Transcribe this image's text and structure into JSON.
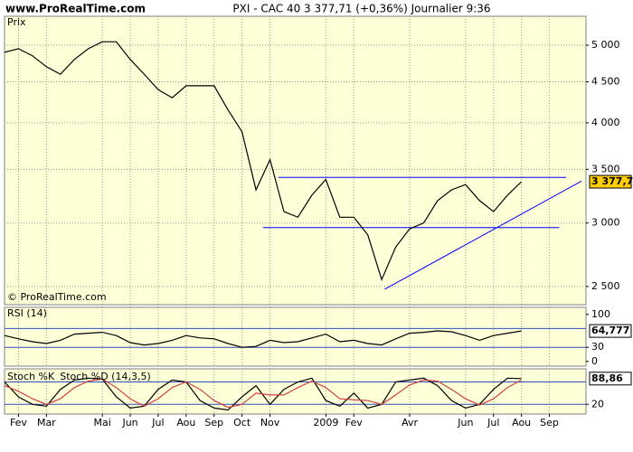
{
  "chart_data": [
    {
      "type": "line",
      "site": "www.ProRealTime.com",
      "title": "PXI - CAC 40   3 377,71 (+0,36%)   Journalier  9:36",
      "label": "Prix",
      "watermark": "© ProRealTime.com",
      "categories": [
        null,
        "Fev",
        null,
        "Mar",
        null,
        null,
        null,
        "Mai",
        null,
        "Jun",
        null,
        "Jul",
        null,
        "Aou",
        null,
        "Sep",
        null,
        "Oct",
        null,
        "Nov",
        null,
        null,
        null,
        "2009",
        null,
        "Fev",
        null,
        null,
        null,
        "Avr",
        null,
        null,
        null,
        "Jun",
        null,
        "Jul",
        null,
        "Aou",
        null,
        "Sep",
        null
      ],
      "values": [
        4900,
        4950,
        4850,
        4700,
        4600,
        4800,
        4950,
        5050,
        5050,
        4800,
        4600,
        4400,
        4300,
        4450,
        4450,
        4450,
        4150,
        3900,
        3300,
        3600,
        3100,
        3050,
        3250,
        3400,
        3050,
        3050,
        2900,
        2550,
        2800,
        2950,
        3000,
        3200,
        3300,
        3350,
        3200,
        3100,
        3250,
        3377.71,
        null,
        null,
        null
      ],
      "value_labels": [
        null,
        null,
        null,
        null,
        null,
        null,
        null,
        null,
        null,
        null,
        null,
        null,
        null,
        null,
        null,
        null,
        null,
        null,
        null,
        null,
        null,
        null,
        null,
        null,
        null,
        null,
        null,
        null,
        null,
        null,
        null,
        null,
        null,
        null,
        null,
        null,
        null,
        "3 377,71",
        null,
        null,
        null
      ],
      "color": "#000000",
      "log_scale": true,
      "ylim": [
        2373,
        5433
      ],
      "yticks": [
        {
          "value": 2500,
          "label": "2 500"
        },
        {
          "value": 3000,
          "label": "3 000"
        },
        {
          "value": 3500,
          "label": "3 500"
        },
        {
          "value": 4000,
          "label": "4 000"
        },
        {
          "value": 4500,
          "label": "4 500"
        },
        {
          "value": 5000,
          "label": "5 000"
        }
      ],
      "grid": true,
      "trendline_color": "#0000ff",
      "trendlines": [
        {
          "x": [
            19.6,
            40.2
          ],
          "y": [
            3420,
            3420
          ]
        },
        {
          "x": [
            18.5,
            39.7
          ],
          "y": [
            2961,
            2961
          ]
        },
        {
          "x": [
            27.2,
            41.3
          ],
          "y": [
            2480,
            3384
          ]
        }
      ]
    },
    {
      "type": "line",
      "label": "RSI (14)",
      "values": [
        55,
        48,
        42,
        38,
        45,
        58,
        60,
        62,
        55,
        40,
        35,
        38,
        45,
        55,
        50,
        48,
        38,
        30,
        32,
        45,
        40,
        42,
        50,
        58,
        42,
        45,
        38,
        35,
        48,
        60,
        62,
        65,
        63,
        55,
        45,
        55,
        60,
        64.777,
        null,
        null,
        null
      ],
      "value_labels": [
        null,
        null,
        null,
        null,
        null,
        null,
        null,
        null,
        null,
        null,
        null,
        null,
        null,
        null,
        null,
        null,
        null,
        null,
        null,
        null,
        null,
        null,
        null,
        null,
        null,
        null,
        null,
        null,
        null,
        null,
        null,
        null,
        null,
        null,
        null,
        null,
        null,
        "64,777",
        null,
        null,
        null
      ],
      "color": "#000000",
      "ylim": [
        -10,
        115
      ],
      "yticks": [
        0,
        30,
        100
      ],
      "levels": [
        70,
        30
      ],
      "level_color": "#3050c0",
      "grid": true
    },
    {
      "type": "line",
      "series": [
        {
          "name": "Stoch %K",
          "color": "#000000",
          "values": [
            80,
            40,
            20,
            15,
            60,
            85,
            90,
            88,
            40,
            10,
            15,
            60,
            85,
            80,
            30,
            10,
            5,
            40,
            70,
            20,
            60,
            80,
            90,
            30,
            15,
            50,
            10,
            20,
            80,
            85,
            90,
            70,
            30,
            10,
            20,
            60,
            90,
            88.86,
            null,
            null,
            null
          ],
          "value_labels": [
            null,
            null,
            null,
            null,
            null,
            null,
            null,
            null,
            null,
            null,
            null,
            null,
            null,
            null,
            null,
            null,
            null,
            null,
            null,
            null,
            null,
            null,
            null,
            null,
            null,
            null,
            null,
            null,
            null,
            null,
            null,
            null,
            null,
            null,
            null,
            null,
            null,
            "88,86",
            null,
            null,
            null
          ]
        },
        {
          "name": "Stoch %D (14,3,5)",
          "color": "#d04040",
          "values": [
            70,
            55,
            35,
            20,
            35,
            65,
            82,
            88,
            65,
            35,
            15,
            35,
            65,
            80,
            60,
            30,
            12,
            20,
            50,
            45,
            45,
            65,
            82,
            65,
            35,
            32,
            30,
            20,
            45,
            72,
            85,
            82,
            60,
            35,
            18,
            35,
            65,
            85,
            null,
            null,
            null
          ]
        }
      ],
      "ylim": [
        -6,
        115
      ],
      "yticks": [
        20
      ],
      "levels": [
        80,
        20
      ],
      "level_color": "#3050c0",
      "grid": true
    }
  ]
}
